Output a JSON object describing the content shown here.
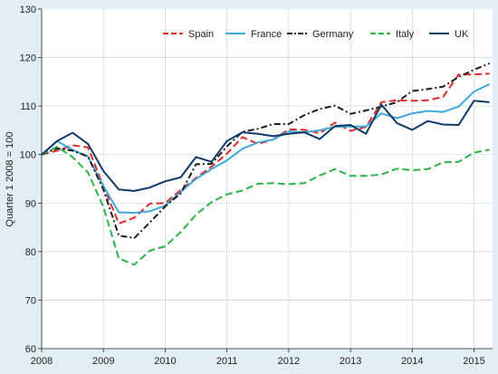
{
  "chart_data": {
    "type": "line",
    "title": "",
    "xlabel": "",
    "ylabel": "Quarter 1 2008 = 100",
    "ylim": [
      60,
      130
    ],
    "yticks": [
      "60",
      "70",
      "80",
      "90",
      "100",
      "110",
      "120",
      "130"
    ],
    "xlim": [
      2008,
      2015.3
    ],
    "xticks": [
      "2008",
      "2009",
      "2010",
      "2011",
      "2012",
      "2013",
      "2014",
      "2015"
    ],
    "grid": true,
    "legend_position": "top-right",
    "series": [
      {
        "name": "Spain",
        "color": "#e02b2b",
        "dash": "dashed",
        "x": [
          2008,
          2008.25,
          2008.5,
          2008.75,
          2009,
          2009.25,
          2009.5,
          2009.75,
          2010,
          2010.25,
          2010.5,
          2010.75,
          2011,
          2011.25,
          2011.5,
          2011.75,
          2012,
          2012.25,
          2012.5,
          2012.75,
          2013,
          2013.25,
          2013.5,
          2013.75,
          2014,
          2014.25,
          2014.5,
          2014.75,
          2015,
          2015.25
        ],
        "values": [
          100,
          100.8,
          101.9,
          101.5,
          93.5,
          85.8,
          87,
          89.9,
          90,
          92.7,
          95.2,
          97.5,
          100.2,
          103.6,
          102.2,
          103.1,
          105.2,
          105.1,
          104.4,
          106.6,
          104.9,
          105.7,
          110.8,
          111.2,
          111.1,
          111.2,
          111.9,
          116.5,
          116.5,
          116.7
        ]
      },
      {
        "name": "France",
        "color": "#3fa9dd",
        "dash": "solid",
        "x": [
          2008,
          2008.25,
          2008.5,
          2008.75,
          2009,
          2009.25,
          2009.5,
          2009.75,
          2010,
          2010.25,
          2010.5,
          2010.75,
          2011,
          2011.25,
          2011.5,
          2011.75,
          2012,
          2012.25,
          2012.5,
          2012.75,
          2013,
          2013.25,
          2013.5,
          2013.75,
          2014,
          2014.25,
          2014.5,
          2014.75,
          2015,
          2015.25
        ],
        "values": [
          100,
          102.8,
          101,
          99.6,
          93.5,
          88.1,
          88,
          88.3,
          89.5,
          92.3,
          95,
          97,
          98.8,
          101.2,
          102.5,
          103.1,
          104.8,
          104.6,
          105,
          105.7,
          105.8,
          105.8,
          108.5,
          107.5,
          108.5,
          109,
          108.8,
          109.9,
          113,
          114.5
        ]
      },
      {
        "name": "Germany",
        "color": "#1e1e1e",
        "dash": "dashdot",
        "x": [
          2008,
          2008.25,
          2008.5,
          2008.75,
          2009,
          2009.25,
          2009.5,
          2009.75,
          2010,
          2010.25,
          2010.5,
          2010.75,
          2011,
          2011.25,
          2011.5,
          2011.75,
          2012,
          2012.25,
          2012.5,
          2012.75,
          2013,
          2013.25,
          2013.5,
          2013.75,
          2014,
          2014.25,
          2014.5,
          2014.75,
          2015,
          2015.25
        ],
        "values": [
          100,
          101.3,
          100.8,
          99.6,
          92.8,
          83.3,
          82.8,
          86,
          89.3,
          92,
          98,
          98.1,
          101.7,
          104.7,
          105.3,
          106.3,
          106.3,
          108.1,
          109.4,
          110.1,
          108.4,
          109.1,
          109.9,
          110.8,
          113.1,
          113.5,
          114,
          116,
          117.5,
          118.8
        ]
      },
      {
        "name": "Italy",
        "color": "#2db34a",
        "dash": "dashed",
        "x": [
          2008,
          2008.25,
          2008.5,
          2008.75,
          2009,
          2009.25,
          2009.5,
          2009.75,
          2010,
          2010.25,
          2010.5,
          2010.75,
          2011,
          2011.25,
          2011.5,
          2011.75,
          2012,
          2012.25,
          2012.5,
          2012.75,
          2013,
          2013.25,
          2013.5,
          2013.75,
          2014,
          2014.25,
          2014.5,
          2014.75,
          2015,
          2015.25
        ],
        "values": [
          100,
          101.6,
          99.5,
          96.3,
          89.2,
          78.6,
          77.3,
          80.2,
          81.1,
          84,
          87.6,
          90.2,
          91.8,
          92.6,
          94,
          94.1,
          93.9,
          94.1,
          95.7,
          97,
          95.6,
          95.6,
          95.9,
          97.1,
          96.8,
          97,
          98.4,
          98.5,
          100.4,
          101
        ]
      },
      {
        "name": "UK",
        "color": "#0f3b6b",
        "dash": "solid",
        "x": [
          2008,
          2008.25,
          2008.5,
          2008.75,
          2009,
          2009.25,
          2009.5,
          2009.75,
          2010,
          2010.25,
          2010.5,
          2010.75,
          2011,
          2011.25,
          2011.5,
          2011.75,
          2012,
          2012.25,
          2012.5,
          2012.75,
          2013,
          2013.25,
          2013.5,
          2013.75,
          2014,
          2014.25,
          2014.5,
          2014.75,
          2015,
          2015.25
        ],
        "values": [
          100,
          102.8,
          104.5,
          102.2,
          96.6,
          92.8,
          92.5,
          93.2,
          94.5,
          95.3,
          99.5,
          98.5,
          102.8,
          104.6,
          104.3,
          103.8,
          104.3,
          104.6,
          103.2,
          105.9,
          106.1,
          104.3,
          110.3,
          106.5,
          105.1,
          106.9,
          106.2,
          106.1,
          111.1,
          110.8
        ]
      }
    ]
  }
}
